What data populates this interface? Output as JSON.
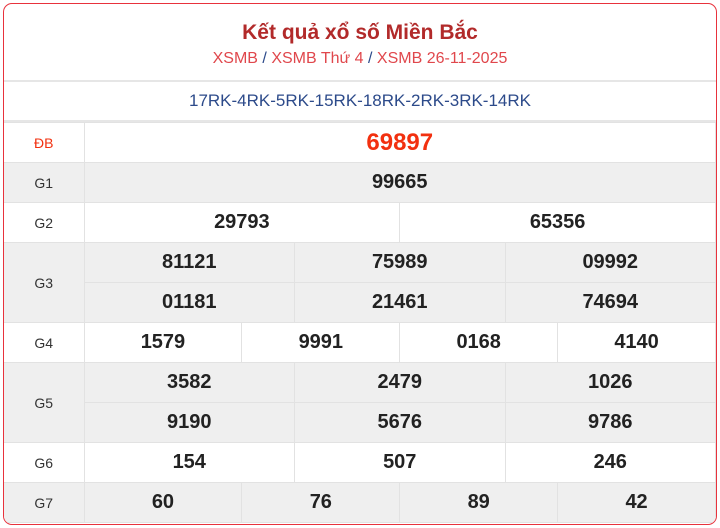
{
  "header": {
    "title": "Kết quả xổ số Miền Bắc",
    "crumbs": [
      "XSMB",
      "XSMB Thứ 4",
      "XSMB 26-11-2025"
    ],
    "separator": "/"
  },
  "codes": "17RK-4RK-5RK-15RK-18RK-2RK-3RK-14RK",
  "prizes": {
    "db": {
      "label": "ĐB",
      "values": [
        "69897"
      ]
    },
    "g1": {
      "label": "G1",
      "values": [
        "99665"
      ]
    },
    "g2": {
      "label": "G2",
      "values": [
        "29793",
        "65356"
      ]
    },
    "g3": {
      "label": "G3",
      "values": [
        "81121",
        "75989",
        "09992",
        "01181",
        "21461",
        "74694"
      ]
    },
    "g4": {
      "label": "G4",
      "values": [
        "1579",
        "9991",
        "0168",
        "4140"
      ]
    },
    "g5": {
      "label": "G5",
      "values": [
        "3582",
        "2479",
        "1026",
        "9190",
        "5676",
        "9786"
      ]
    },
    "g6": {
      "label": "G6",
      "values": [
        "154",
        "507",
        "246"
      ]
    },
    "g7": {
      "label": "G7",
      "values": [
        "60",
        "76",
        "89",
        "42"
      ]
    }
  },
  "colors": {
    "border": "#e8323c",
    "title": "#b22a2a",
    "special": "#f2300f",
    "codes": "#2c4a8a"
  }
}
